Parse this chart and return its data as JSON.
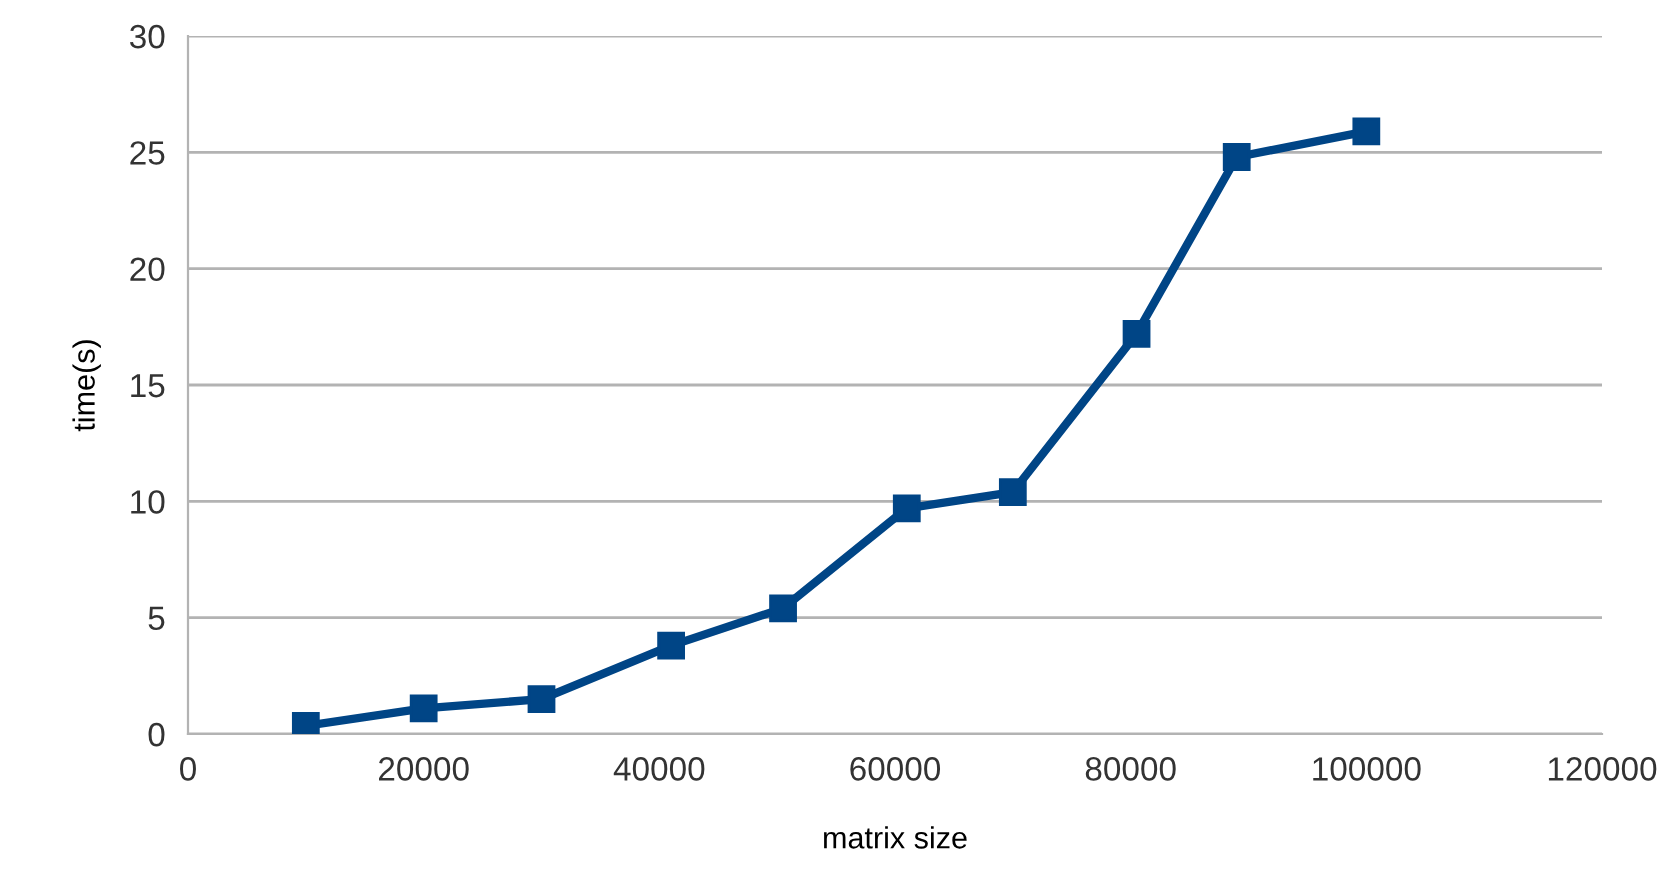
{
  "chart_data": {
    "type": "line",
    "xlabel": "matrix size",
    "ylabel": "time(s)",
    "x": [
      10000,
      20000,
      30000,
      41000,
      50500,
      61000,
      70000,
      80500,
      89000,
      100000
    ],
    "series": [
      {
        "color": "#004586",
        "values": [
          0.35,
          1.1,
          1.5,
          3.8,
          5.4,
          9.7,
          10.4,
          17.2,
          24.8,
          25.9
        ]
      }
    ],
    "xlim": [
      0,
      120000
    ],
    "xticks": [
      0,
      20000,
      40000,
      60000,
      80000,
      100000,
      120000
    ],
    "ylim": [
      0,
      30
    ],
    "yticks": [
      0,
      5,
      10,
      15,
      20,
      25,
      30
    ],
    "grid": "y",
    "marker": "square",
    "line_style": "solid",
    "legend": false
  }
}
